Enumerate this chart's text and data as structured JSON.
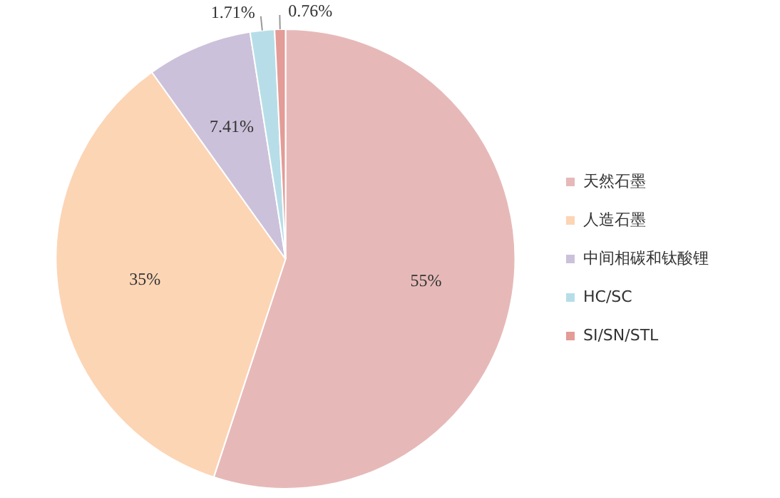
{
  "chart_data": {
    "type": "pie",
    "categories": [
      "天然石墨",
      "人造石墨",
      "中间相碳和钛酸锂",
      "HC/SC",
      "SI/SN/STL"
    ],
    "values": [
      55,
      35,
      7.41,
      1.71,
      0.76
    ],
    "colors": [
      "#e6b9b8",
      "#fcd5b5",
      "#ccc1da",
      "#b7dee8",
      "#e39c97"
    ],
    "value_labels": [
      "55%",
      "35%",
      "7.41%",
      "1.71%",
      "0.76%"
    ],
    "legend": "right"
  }
}
